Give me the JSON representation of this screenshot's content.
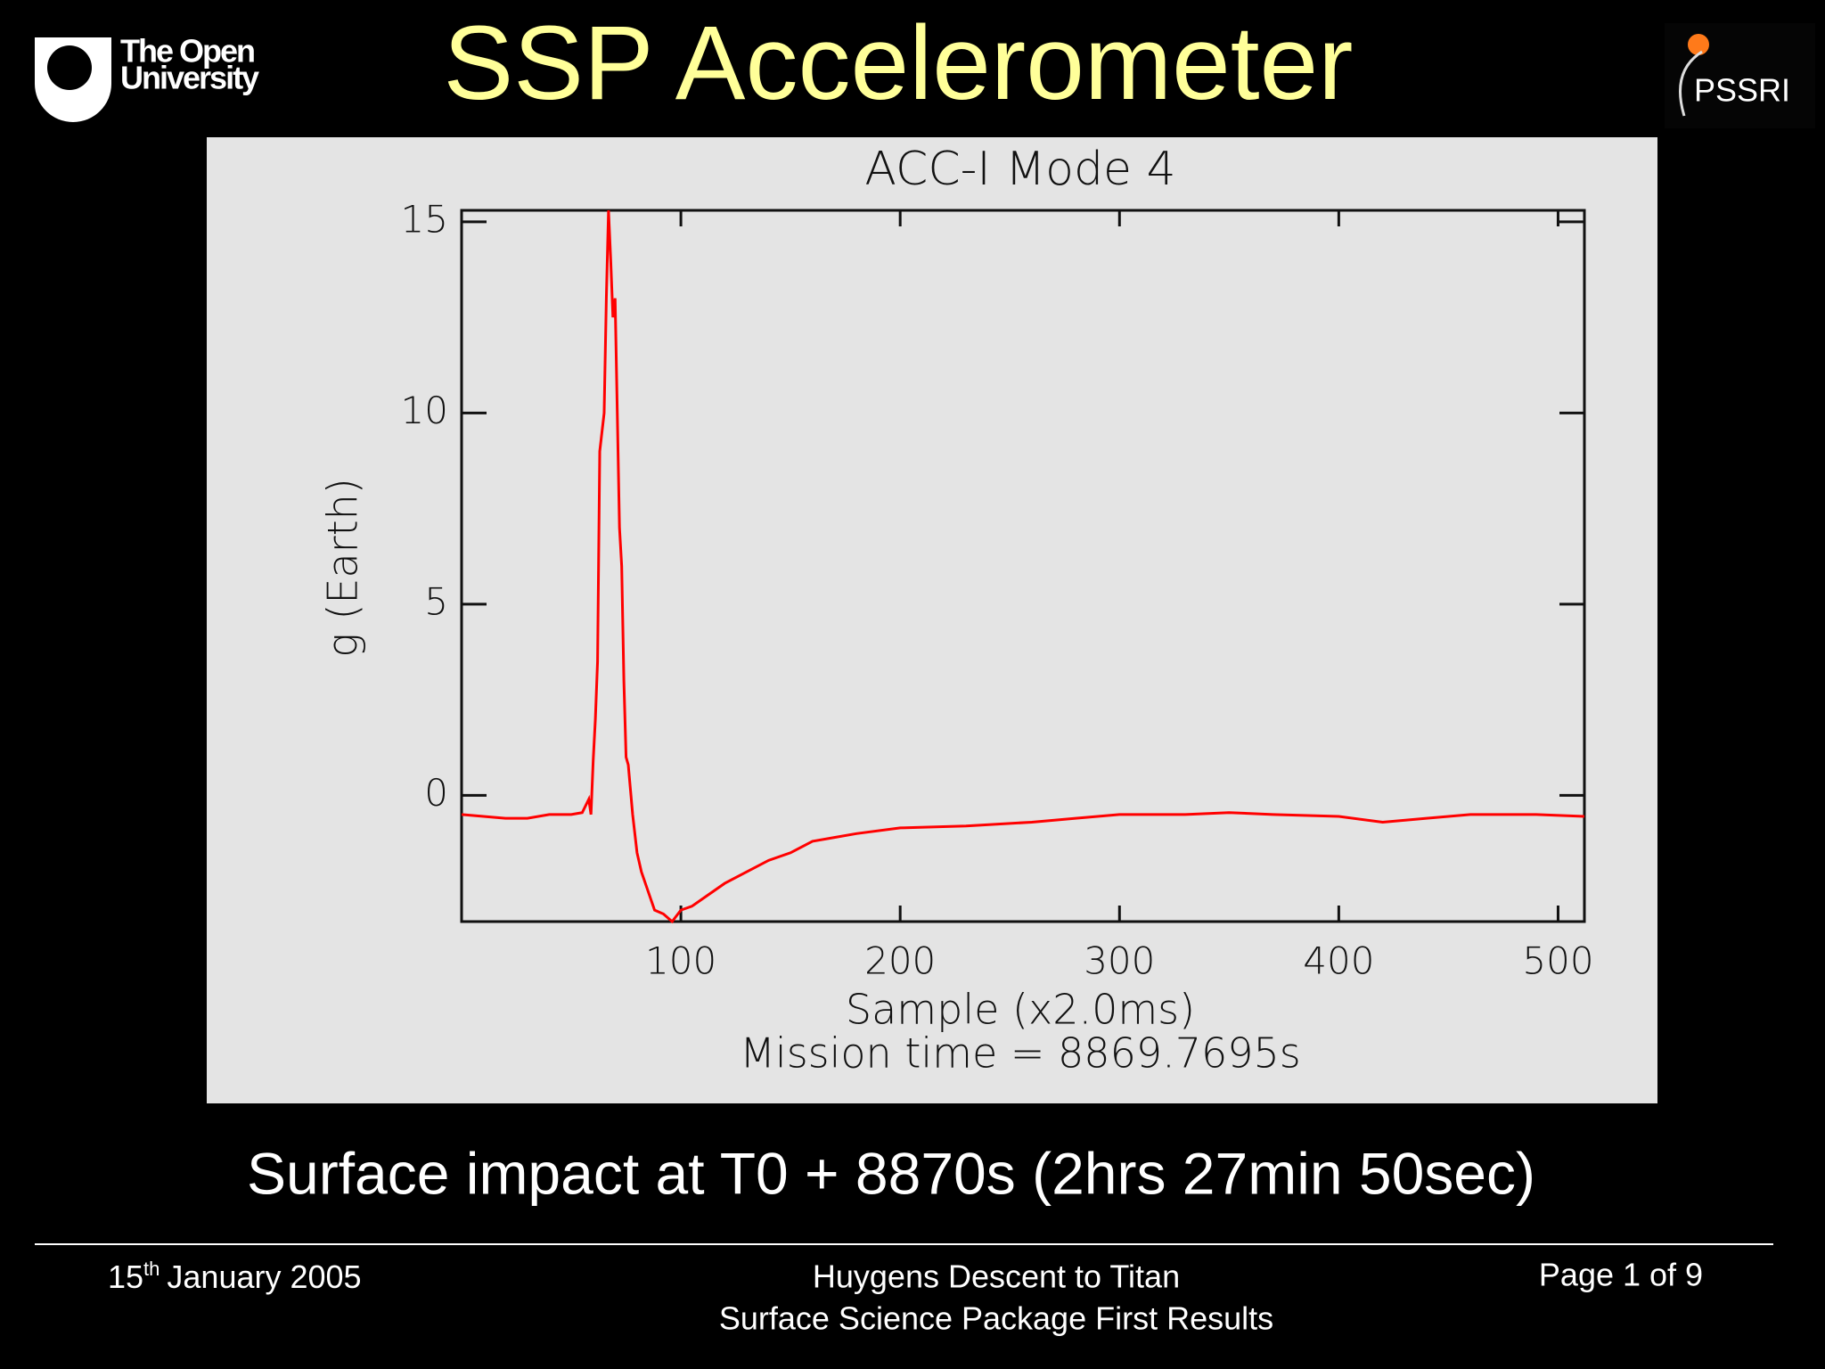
{
  "slide": {
    "title": "SSP Accelerometer",
    "logo_left": [
      "The Open",
      "University"
    ],
    "logo_right": "PSSRI",
    "caption": "Surface impact at T0 + 8870s (2hrs 27min 50sec)",
    "footer": {
      "date_day": "15",
      "date_suffix": "th",
      "date_rest": "January 2005",
      "center": [
        "Huygens Descent to Titan",
        "Surface Science Package First Results"
      ],
      "page": "Page 1 of 9"
    }
  },
  "chart_data": {
    "type": "line",
    "title": "ACC-I Mode 4",
    "x_label": "Sample (x2.0ms)",
    "y_label": "g (Earth)",
    "annotation": "Mission time = 8869.7695s",
    "x": [
      0,
      10,
      20,
      30,
      40,
      50,
      55,
      58,
      59,
      60,
      61,
      62,
      63,
      64,
      65,
      66,
      67,
      68,
      69,
      70,
      71,
      72,
      73,
      74,
      75,
      76,
      78,
      80,
      82,
      85,
      88,
      92,
      96,
      100,
      105,
      110,
      120,
      130,
      140,
      150,
      160,
      170,
      180,
      200,
      230,
      260,
      280,
      300,
      330,
      350,
      370,
      400,
      420,
      440,
      460,
      490,
      512
    ],
    "series": [
      {
        "name": "ACC-I",
        "color": "#ff0000",
        "values": [
          -0.5,
          -0.55,
          -0.6,
          -0.6,
          -0.5,
          -0.5,
          -0.45,
          -0.1,
          -0.5,
          0.9,
          2.0,
          3.5,
          9.0,
          9.5,
          10.0,
          13.0,
          15.3,
          14.0,
          12.5,
          13.0,
          10.0,
          7.0,
          6.0,
          3.0,
          1.0,
          0.8,
          -0.5,
          -1.5,
          -2.0,
          -2.5,
          -3.0,
          -3.1,
          -3.3,
          -3.0,
          -2.9,
          -2.7,
          -2.3,
          -2.0,
          -1.7,
          -1.5,
          -1.2,
          -1.1,
          -1.0,
          -0.85,
          -0.8,
          -0.7,
          -0.6,
          -0.5,
          -0.5,
          -0.45,
          -0.5,
          -0.55,
          -0.7,
          -0.6,
          -0.5,
          -0.5,
          -0.55
        ]
      }
    ],
    "xlim": [
      0,
      512
    ],
    "ylim": [
      -3.3,
      15.3
    ],
    "xticks": [
      100,
      200,
      300,
      400,
      500
    ],
    "yticks": [
      0,
      5,
      10,
      15
    ]
  }
}
